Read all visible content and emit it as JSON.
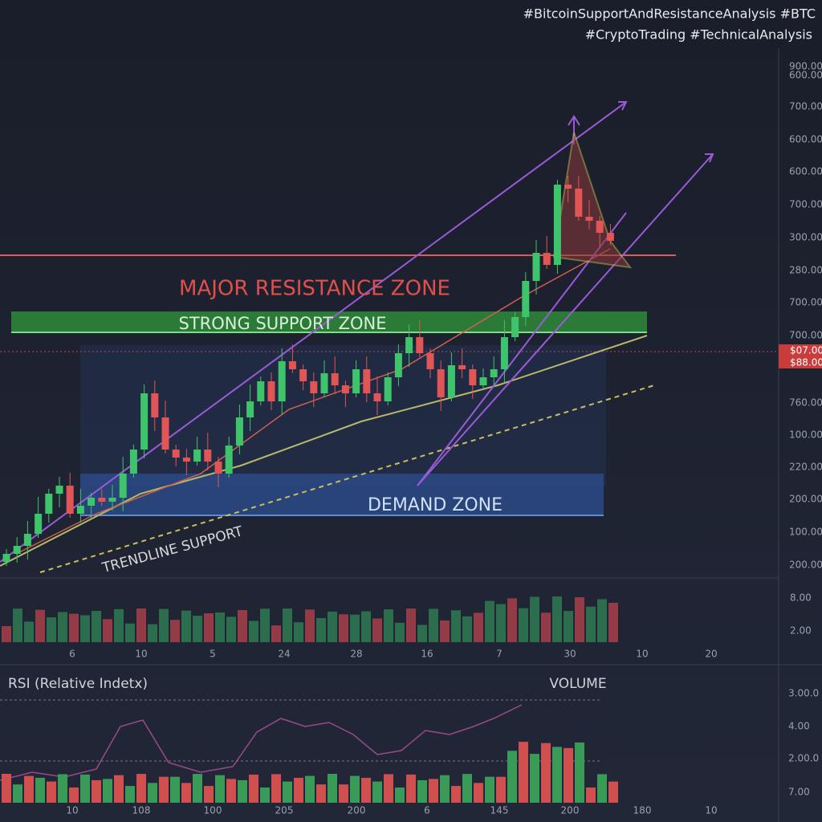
{
  "hashtags": [
    "#BitcoinSupportAndResistanceAnalysis #BTC",
    "#CryptoTrading #TechnicalAnalysis"
  ],
  "price_axis": [
    "900.00",
    "600.00",
    "700.00",
    "600.00",
    "600.00",
    "700.00",
    "300.00",
    "280.00",
    "700.00",
    "700.00",
    "760.00",
    "100.00",
    "220.00",
    "200.00",
    "100.00",
    "200.00"
  ],
  "price_tags": [
    "$07.00",
    "$88.00"
  ],
  "volume_axis": [
    "8.00",
    "2.00"
  ],
  "x_axis": [
    "6",
    "10",
    "5",
    "24",
    "28",
    "16",
    "7",
    "30",
    "10",
    "20"
  ],
  "rsi_axis": [
    "3.00.0",
    "4.00",
    "2.00.0",
    "7.00"
  ],
  "rsi_x_axis": [
    "10",
    "108",
    "100",
    "205",
    "200",
    "6",
    "145",
    "200",
    "180",
    "10"
  ],
  "annotations": {
    "resistance": "MAJOR RESISTANCE ZONE",
    "support": "STRONG SUPPORT ZONE",
    "demand": "DEMAND ZONE",
    "trendline": "TRENDLINE SUPPORT",
    "rsi": "RSI (Relative Indetx)",
    "volume": "VOLUME"
  }
}
